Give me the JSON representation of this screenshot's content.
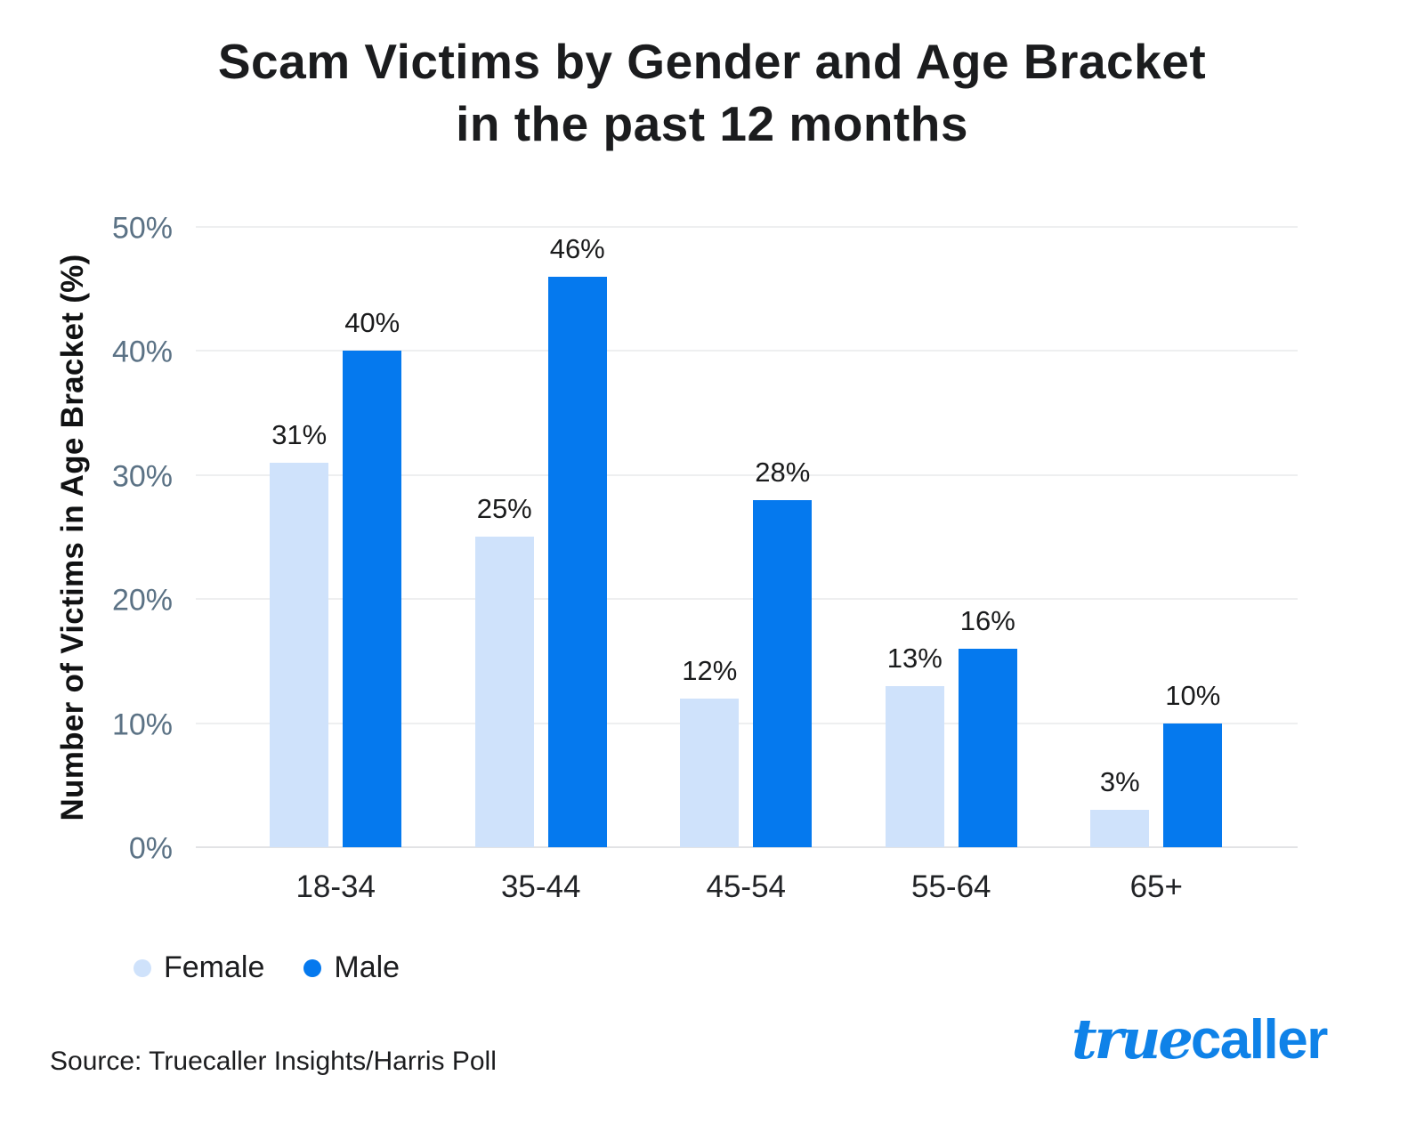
{
  "title": {
    "line1": "Scam Victims by Gender and Age Bracket",
    "line2": "in the past 12 months"
  },
  "colors": {
    "female": "#cfe2fb",
    "male": "#0579ee",
    "grid": "#eeeff0",
    "baseline": "#e2e3e5",
    "tick_label": "#5b7285",
    "title_text": "#1b1c1e",
    "logo_blue": "#0f82e8"
  },
  "chart_data": {
    "type": "bar",
    "title": "Scam Victims by Gender and Age Bracket in the past 12 months",
    "categories": [
      "18-34",
      "35-44",
      "45-54",
      "55-64",
      "65+"
    ],
    "series": [
      {
        "name": "Female",
        "color_key": "female",
        "values": [
          31,
          25,
          12,
          13,
          3
        ]
      },
      {
        "name": "Male",
        "color_key": "male",
        "values": [
          40,
          46,
          28,
          16,
          10
        ]
      }
    ],
    "xlabel": "",
    "ylabel": "Number of Victims in Age Bracket (%)",
    "ylim": [
      0,
      50
    ],
    "yticks": [
      0,
      10,
      20,
      30,
      40,
      50
    ],
    "ytick_suffix": "%",
    "data_label_suffix": "%",
    "grid": true,
    "legend_position": "bottom-left"
  },
  "legend": {
    "items": [
      {
        "label": "Female",
        "color_key": "female"
      },
      {
        "label": "Male",
        "color_key": "male"
      }
    ]
  },
  "footer": {
    "source": "Source: Truecaller Insights/Harris Poll"
  },
  "brand": {
    "logo_part1": "true",
    "logo_part2": "caller"
  }
}
